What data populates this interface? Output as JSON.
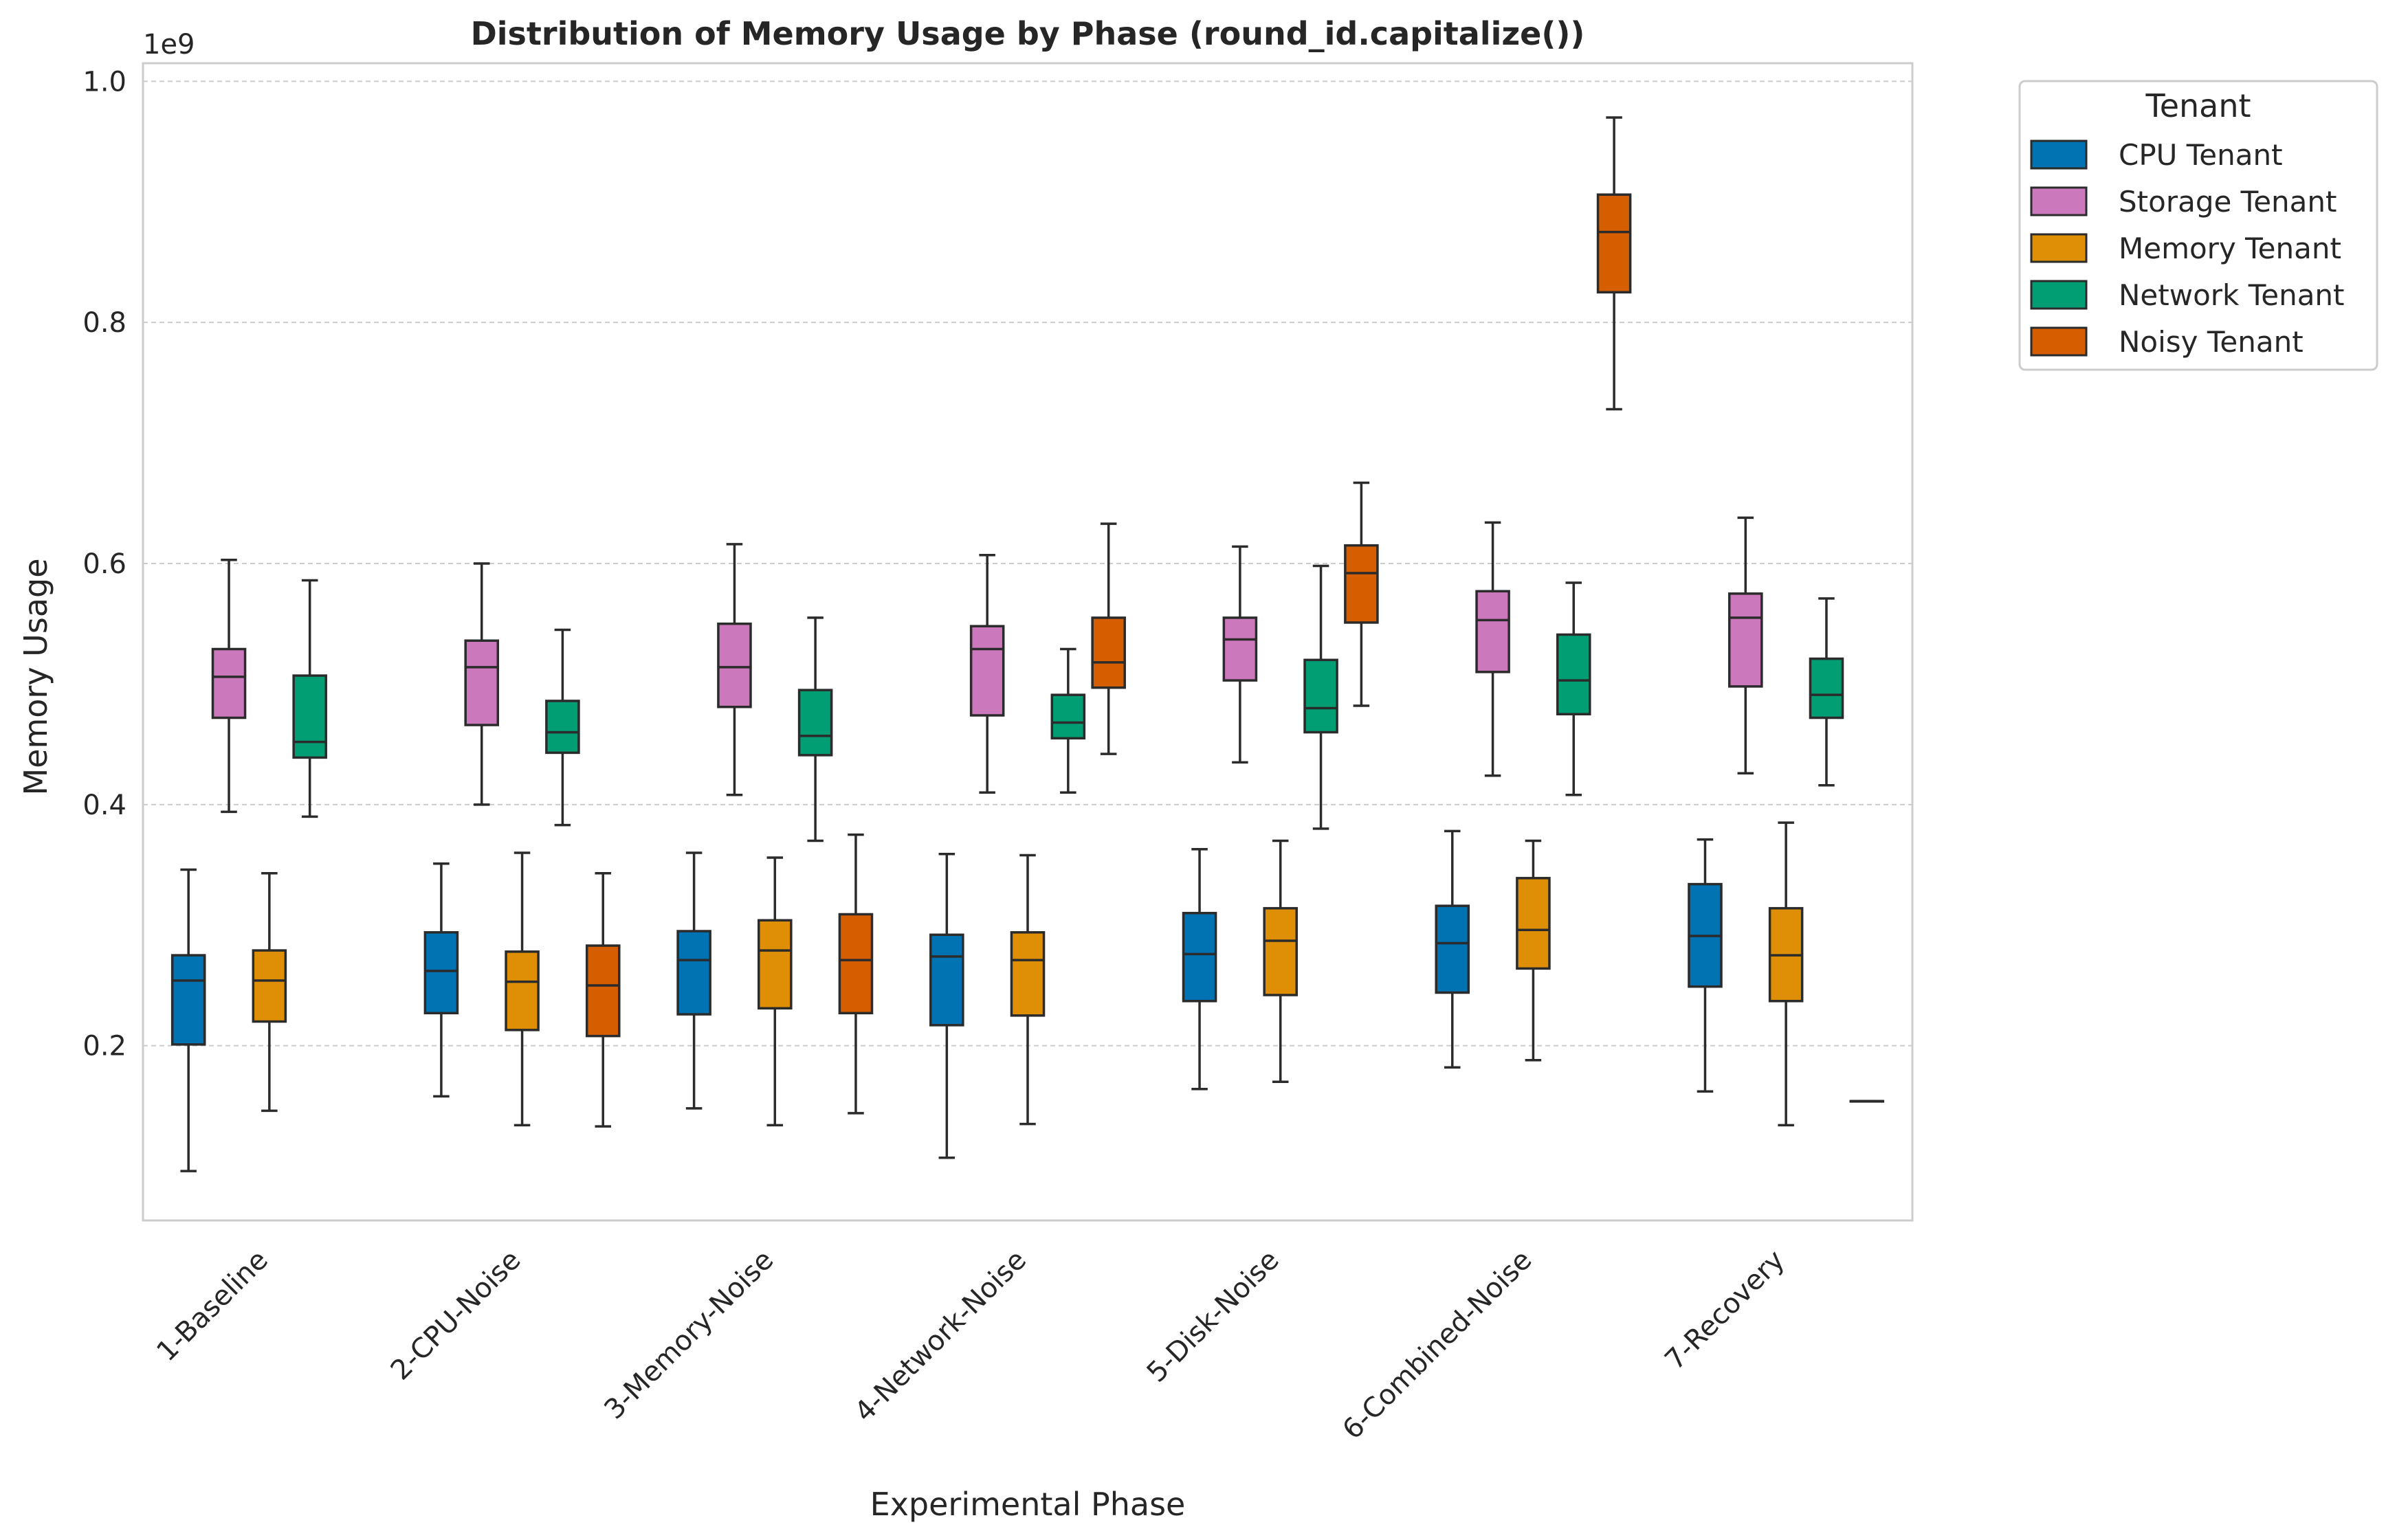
{
  "chart_data": {
    "type": "box",
    "title": "Distribution of Memory Usage by Phase (round_id.capitalize())",
    "xlabel": "Experimental Phase",
    "ylabel": "Memory Usage",
    "y_offset_label": "1e9",
    "ylim": [
      0.055,
      1.015
    ],
    "yticks": [
      "0.2",
      "0.4",
      "0.6",
      "0.8",
      "1.0"
    ],
    "grid": "horizontal dashed",
    "legend_title": "Tenant",
    "legend_position": "outside right",
    "categories": [
      "1-Baseline",
      "2-CPU-Noise",
      "3-Memory-Noise",
      "4-Network-Noise",
      "5-Disk-Noise",
      "6-Combined-Noise",
      "7-Recovery"
    ],
    "series": [
      {
        "name": "CPU Tenant",
        "color": "#0173B2",
        "boxes": [
          {
            "whislo": 0.096,
            "q1": 0.201,
            "med": 0.254,
            "q3": 0.275,
            "whishi": 0.346
          },
          {
            "whislo": 0.158,
            "q1": 0.227,
            "med": 0.262,
            "q3": 0.294,
            "whishi": 0.351
          },
          {
            "whislo": 0.148,
            "q1": 0.226,
            "med": 0.271,
            "q3": 0.295,
            "whishi": 0.36
          },
          {
            "whislo": 0.107,
            "q1": 0.217,
            "med": 0.274,
            "q3": 0.292,
            "whishi": 0.359
          },
          {
            "whislo": 0.164,
            "q1": 0.237,
            "med": 0.276,
            "q3": 0.31,
            "whishi": 0.363
          },
          {
            "whislo": 0.182,
            "q1": 0.244,
            "med": 0.285,
            "q3": 0.316,
            "whishi": 0.378
          },
          {
            "whislo": 0.162,
            "q1": 0.249,
            "med": 0.291,
            "q3": 0.334,
            "whishi": 0.371
          }
        ]
      },
      {
        "name": "Storage Tenant",
        "color": "#CC78BC",
        "boxes": [
          {
            "whislo": 0.394,
            "q1": 0.472,
            "med": 0.506,
            "q3": 0.529,
            "whishi": 0.603
          },
          {
            "whislo": 0.4,
            "q1": 0.466,
            "med": 0.514,
            "q3": 0.536,
            "whishi": 0.6
          },
          {
            "whislo": 0.408,
            "q1": 0.481,
            "med": 0.514,
            "q3": 0.55,
            "whishi": 0.616
          },
          {
            "whislo": 0.41,
            "q1": 0.474,
            "med": 0.529,
            "q3": 0.548,
            "whishi": 0.607
          },
          {
            "whislo": 0.435,
            "q1": 0.503,
            "med": 0.537,
            "q3": 0.555,
            "whishi": 0.614
          },
          {
            "whislo": 0.424,
            "q1": 0.51,
            "med": 0.553,
            "q3": 0.577,
            "whishi": 0.634
          },
          {
            "whislo": 0.426,
            "q1": 0.498,
            "med": 0.555,
            "q3": 0.575,
            "whishi": 0.638
          }
        ]
      },
      {
        "name": "Memory Tenant",
        "color": "#DE8F05",
        "boxes": [
          {
            "whislo": 0.146,
            "q1": 0.22,
            "med": 0.254,
            "q3": 0.279,
            "whishi": 0.343
          },
          {
            "whislo": 0.134,
            "q1": 0.213,
            "med": 0.253,
            "q3": 0.278,
            "whishi": 0.36
          },
          {
            "whislo": 0.134,
            "q1": 0.231,
            "med": 0.279,
            "q3": 0.304,
            "whishi": 0.356
          },
          {
            "whislo": 0.135,
            "q1": 0.225,
            "med": 0.271,
            "q3": 0.294,
            "whishi": 0.358
          },
          {
            "whislo": 0.17,
            "q1": 0.242,
            "med": 0.287,
            "q3": 0.314,
            "whishi": 0.37
          },
          {
            "whislo": 0.188,
            "q1": 0.264,
            "med": 0.296,
            "q3": 0.339,
            "whishi": 0.37
          },
          {
            "whislo": 0.134,
            "q1": 0.237,
            "med": 0.275,
            "q3": 0.314,
            "whishi": 0.385
          }
        ]
      },
      {
        "name": "Network Tenant",
        "color": "#029E73",
        "boxes": [
          {
            "whislo": 0.39,
            "q1": 0.439,
            "med": 0.452,
            "q3": 0.507,
            "whishi": 0.586
          },
          {
            "whislo": 0.383,
            "q1": 0.443,
            "med": 0.46,
            "q3": 0.486,
            "whishi": 0.545
          },
          {
            "whislo": 0.37,
            "q1": 0.441,
            "med": 0.457,
            "q3": 0.495,
            "whishi": 0.555
          },
          {
            "whislo": 0.41,
            "q1": 0.455,
            "med": 0.468,
            "q3": 0.491,
            "whishi": 0.529
          },
          {
            "whislo": 0.38,
            "q1": 0.46,
            "med": 0.48,
            "q3": 0.52,
            "whishi": 0.598
          },
          {
            "whislo": 0.408,
            "q1": 0.475,
            "med": 0.503,
            "q3": 0.541,
            "whishi": 0.584
          },
          {
            "whislo": 0.416,
            "q1": 0.472,
            "med": 0.491,
            "q3": 0.521,
            "whishi": 0.571
          }
        ]
      },
      {
        "name": "Noisy Tenant",
        "color": "#D55E00",
        "boxes": [
          null,
          {
            "whislo": 0.133,
            "q1": 0.208,
            "med": 0.25,
            "q3": 0.283,
            "whishi": 0.343
          },
          {
            "whislo": 0.144,
            "q1": 0.227,
            "med": 0.271,
            "q3": 0.309,
            "whishi": 0.375
          },
          {
            "whislo": 0.442,
            "q1": 0.497,
            "med": 0.518,
            "q3": 0.555,
            "whishi": 0.633
          },
          {
            "whislo": 0.482,
            "q1": 0.551,
            "med": 0.592,
            "q3": 0.615,
            "whishi": 0.667
          },
          {
            "whislo": 0.728,
            "q1": 0.825,
            "med": 0.875,
            "q3": 0.906,
            "whishi": 0.97
          },
          {
            "whislo": 0.154,
            "q1": 0.154,
            "med": 0.154,
            "q3": 0.154,
            "whishi": 0.154
          }
        ]
      }
    ]
  }
}
